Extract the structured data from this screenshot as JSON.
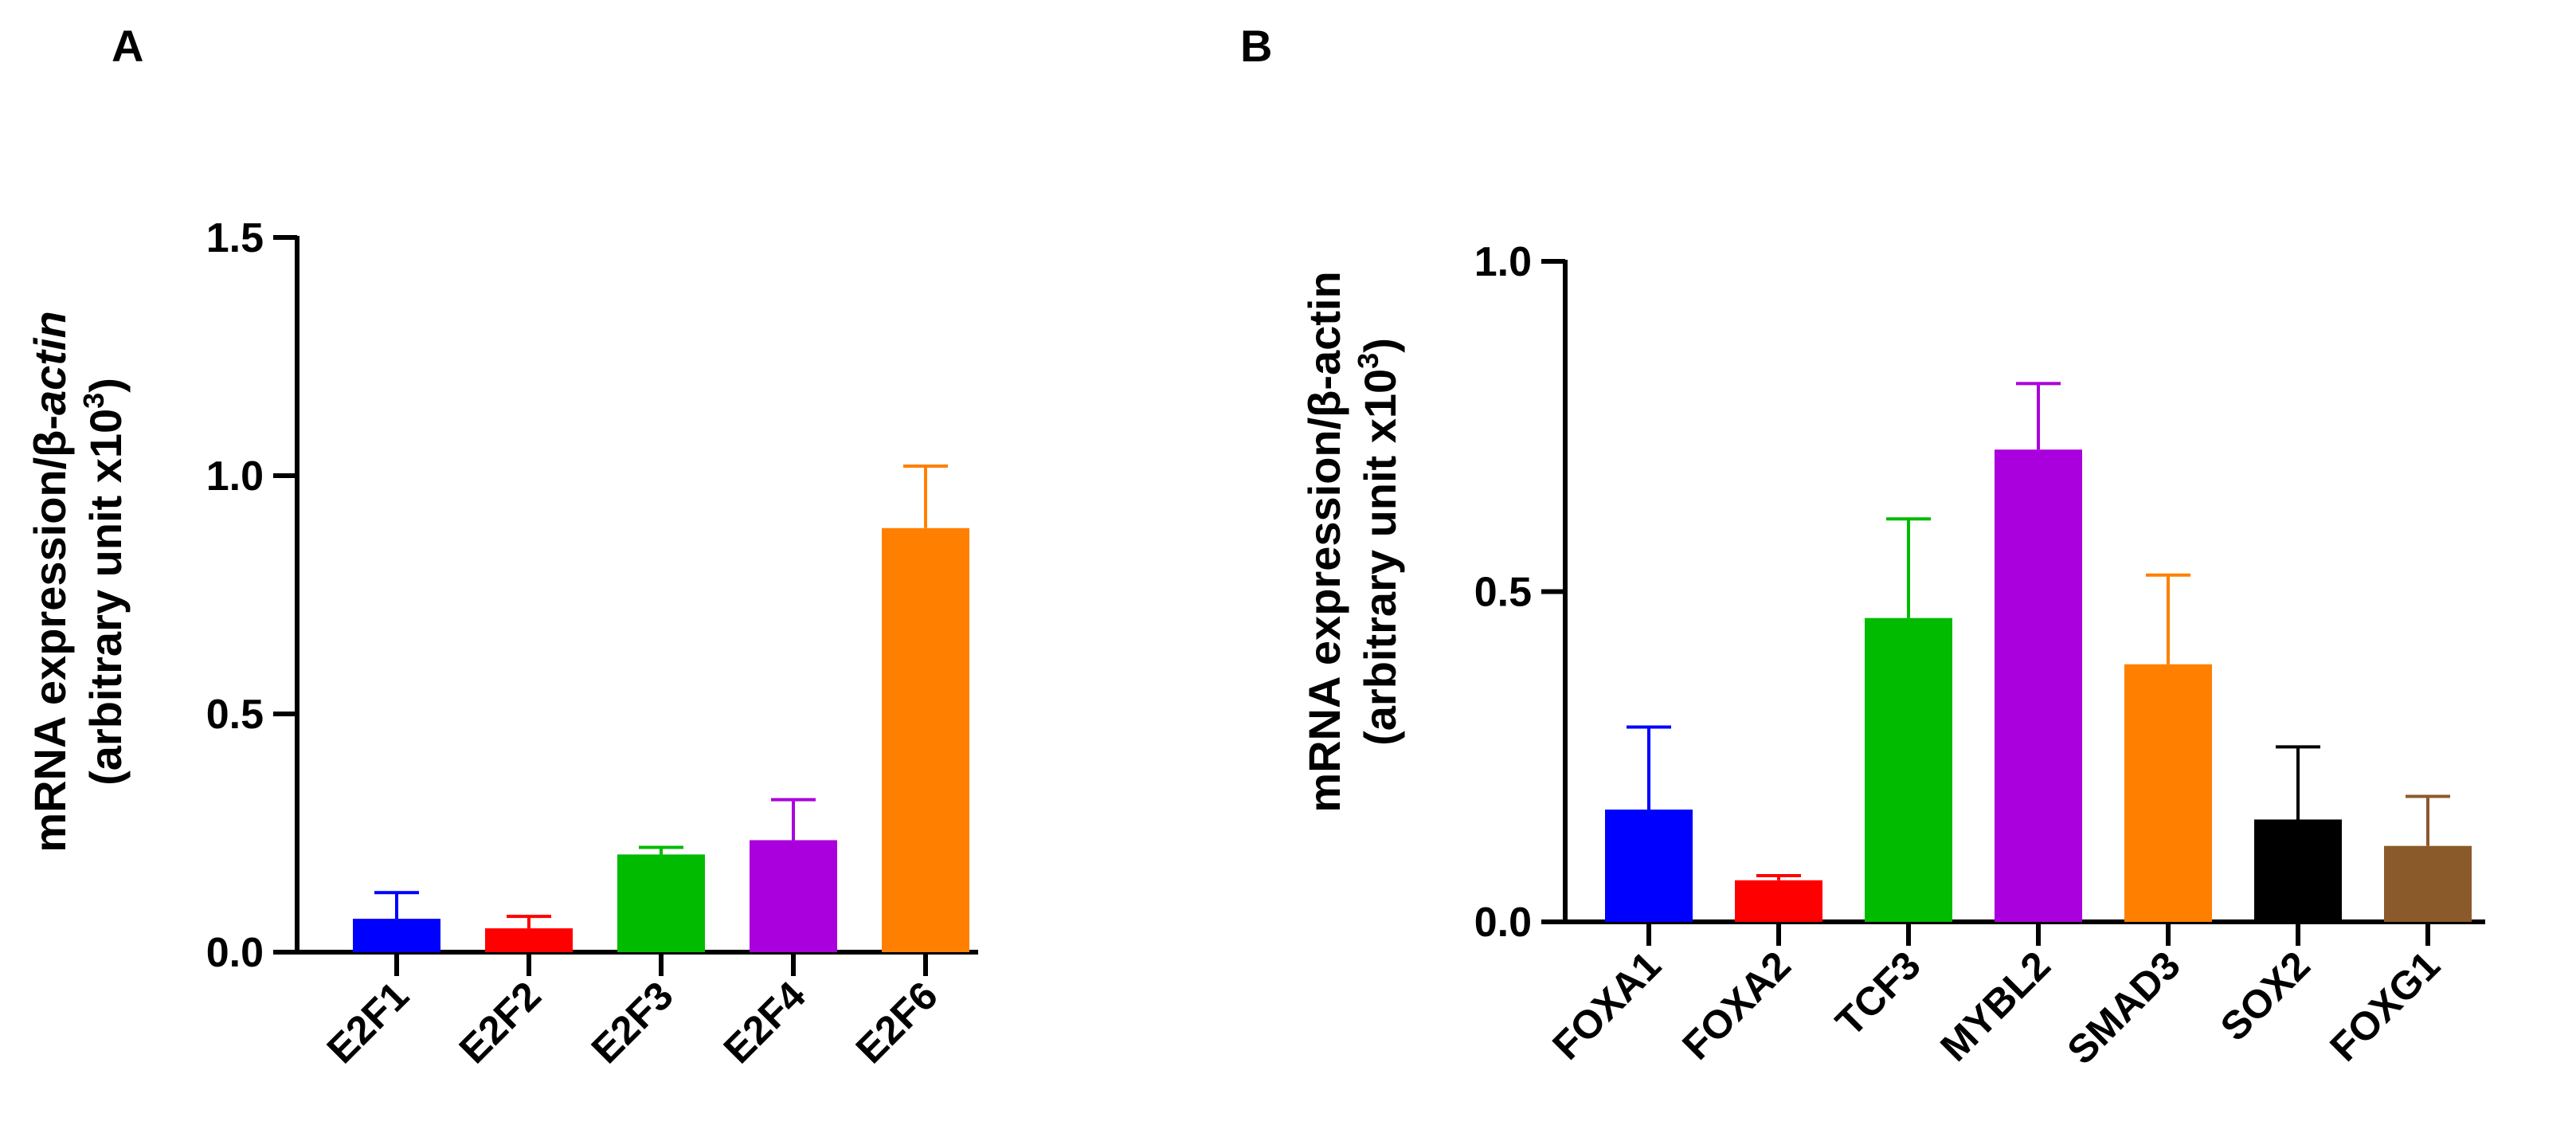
{
  "chart_data": [
    {
      "type": "bar",
      "panel_label": "A",
      "categories": [
        "E2F1",
        "E2F2",
        "E2F3",
        "E2F4",
        "E2F6"
      ],
      "values": [
        0.07,
        0.05,
        0.205,
        0.235,
        0.89
      ],
      "errors": [
        0.055,
        0.025,
        0.015,
        0.085,
        0.13
      ],
      "colors": [
        "#0000ff",
        "#ff0000",
        "#00bb00",
        "#aa00dd",
        "#ff8000"
      ],
      "ylim": [
        0,
        1.5
      ],
      "yticks": [
        "0.0",
        "0.5",
        "1.0",
        "1.5"
      ],
      "ylabel_line1_prefix": "mRNA expression/β-",
      "ylabel_line1_italic": "actin",
      "ylabel_line2": "(arbitrary unit x10",
      "ylabel_line2_sup": "3",
      "ylabel_line2_end": ")",
      "xlabel": "",
      "title": ""
    },
    {
      "type": "bar",
      "panel_label": "B",
      "categories": [
        "FOXA1",
        "FOXA2",
        "TCF3",
        "MYBL2",
        "SMAD3",
        "SOX2",
        "FOXG1"
      ],
      "values": [
        0.17,
        0.063,
        0.46,
        0.715,
        0.39,
        0.155,
        0.115
      ],
      "errors": [
        0.125,
        0.007,
        0.15,
        0.1,
        0.135,
        0.11,
        0.075
      ],
      "colors": [
        "#0000ff",
        "#ff0000",
        "#00bb00",
        "#aa00dd",
        "#ff8000",
        "#000000",
        "#8b5a2b"
      ],
      "ylim": [
        0,
        1.0
      ],
      "yticks": [
        "0.0",
        "0.5",
        "1.0"
      ],
      "ylabel_line1_prefix": "mRNA expression/β-actin",
      "ylabel_line1_italic": "",
      "ylabel_line2": "(arbitrary unit x10",
      "ylabel_line2_sup": "3",
      "ylabel_line2_end": ")",
      "xlabel": "",
      "title": ""
    }
  ]
}
